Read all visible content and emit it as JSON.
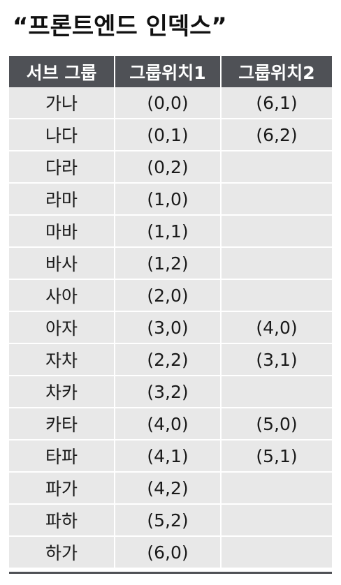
{
  "title": "“프론트엔드 인덱스”",
  "table": {
    "headers": [
      "서브 그룹",
      "그룹위치1",
      "그룹위치2"
    ],
    "rows": [
      [
        "가나",
        "(0,0)",
        "(6,1)"
      ],
      [
        "나다",
        "(0,1)",
        "(6,2)"
      ],
      [
        "다라",
        "(0,2)",
        ""
      ],
      [
        "라마",
        "(1,0)",
        ""
      ],
      [
        "마바",
        "(1,1)",
        ""
      ],
      [
        "바사",
        "(1,2)",
        ""
      ],
      [
        "사아",
        "(2,0)",
        ""
      ],
      [
        "아자",
        "(3,0)",
        "(4,0)"
      ],
      [
        "자차",
        "(2,2)",
        "(3,1)"
      ],
      [
        "차카",
        "(3,2)",
        ""
      ],
      [
        "카타",
        "(4,0)",
        "(5,0)"
      ],
      [
        "타파",
        "(4,1)",
        "(5,1)"
      ],
      [
        "파가",
        "(4,2)",
        ""
      ],
      [
        "파하",
        "(5,2)",
        ""
      ],
      [
        "하가",
        "(6,0)",
        ""
      ]
    ]
  },
  "colors": {
    "header_bg": "#4f5156",
    "cell_bg": "#e8e8e8",
    "grid_line": "#ffffff"
  }
}
